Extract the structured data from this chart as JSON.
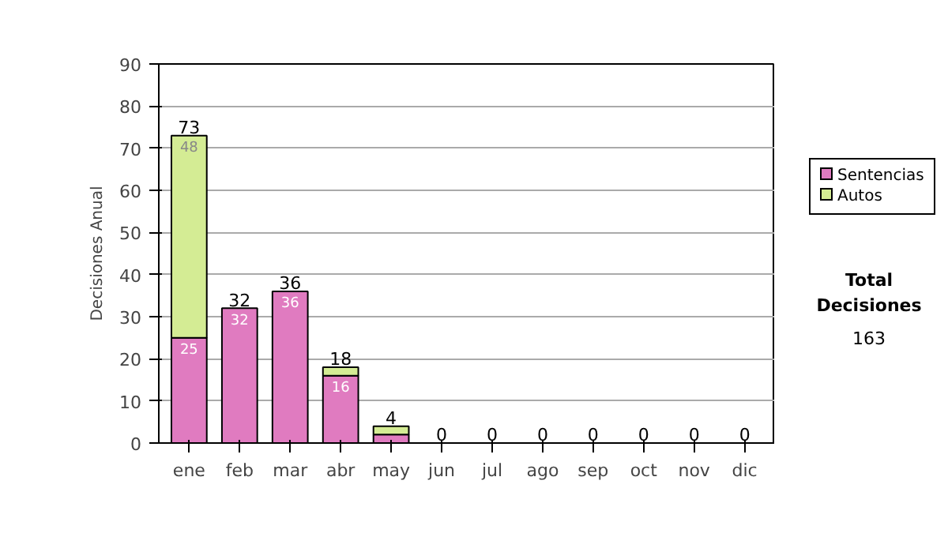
{
  "chart_data": {
    "type": "bar",
    "ylabel": "Decisiones Anual",
    "categories": [
      "ene",
      "feb",
      "mar",
      "abr",
      "may",
      "jun",
      "jul",
      "ago",
      "sep",
      "oct",
      "nov",
      "dic"
    ],
    "stacked": true,
    "series": [
      {
        "name": "Sentencias",
        "color": "#e07bc0",
        "values": [
          25,
          32,
          36,
          16,
          2,
          0,
          0,
          0,
          0,
          0,
          0,
          0
        ],
        "value_labels": [
          "25",
          "32",
          "36",
          "16",
          null,
          null,
          null,
          null,
          null,
          null,
          null,
          null
        ]
      },
      {
        "name": "Autos",
        "color": "#d4ec94",
        "values": [
          48,
          0,
          0,
          2,
          2,
          0,
          0,
          0,
          0,
          0,
          0,
          0
        ],
        "value_labels": [
          "48",
          null,
          null,
          null,
          null,
          null,
          null,
          null,
          null,
          null,
          null,
          null
        ]
      }
    ],
    "totals": [
      "73",
      "32",
      "36",
      "18",
      "4",
      "0",
      "0",
      "0",
      "0",
      "0",
      "0",
      "0"
    ],
    "ylim": [
      0,
      90
    ],
    "yticks": [
      0,
      10,
      20,
      30,
      40,
      50,
      60,
      70,
      80,
      90
    ],
    "grid": "y",
    "legend": "right",
    "annotations": [
      "Total Decisiones",
      "163"
    ]
  }
}
